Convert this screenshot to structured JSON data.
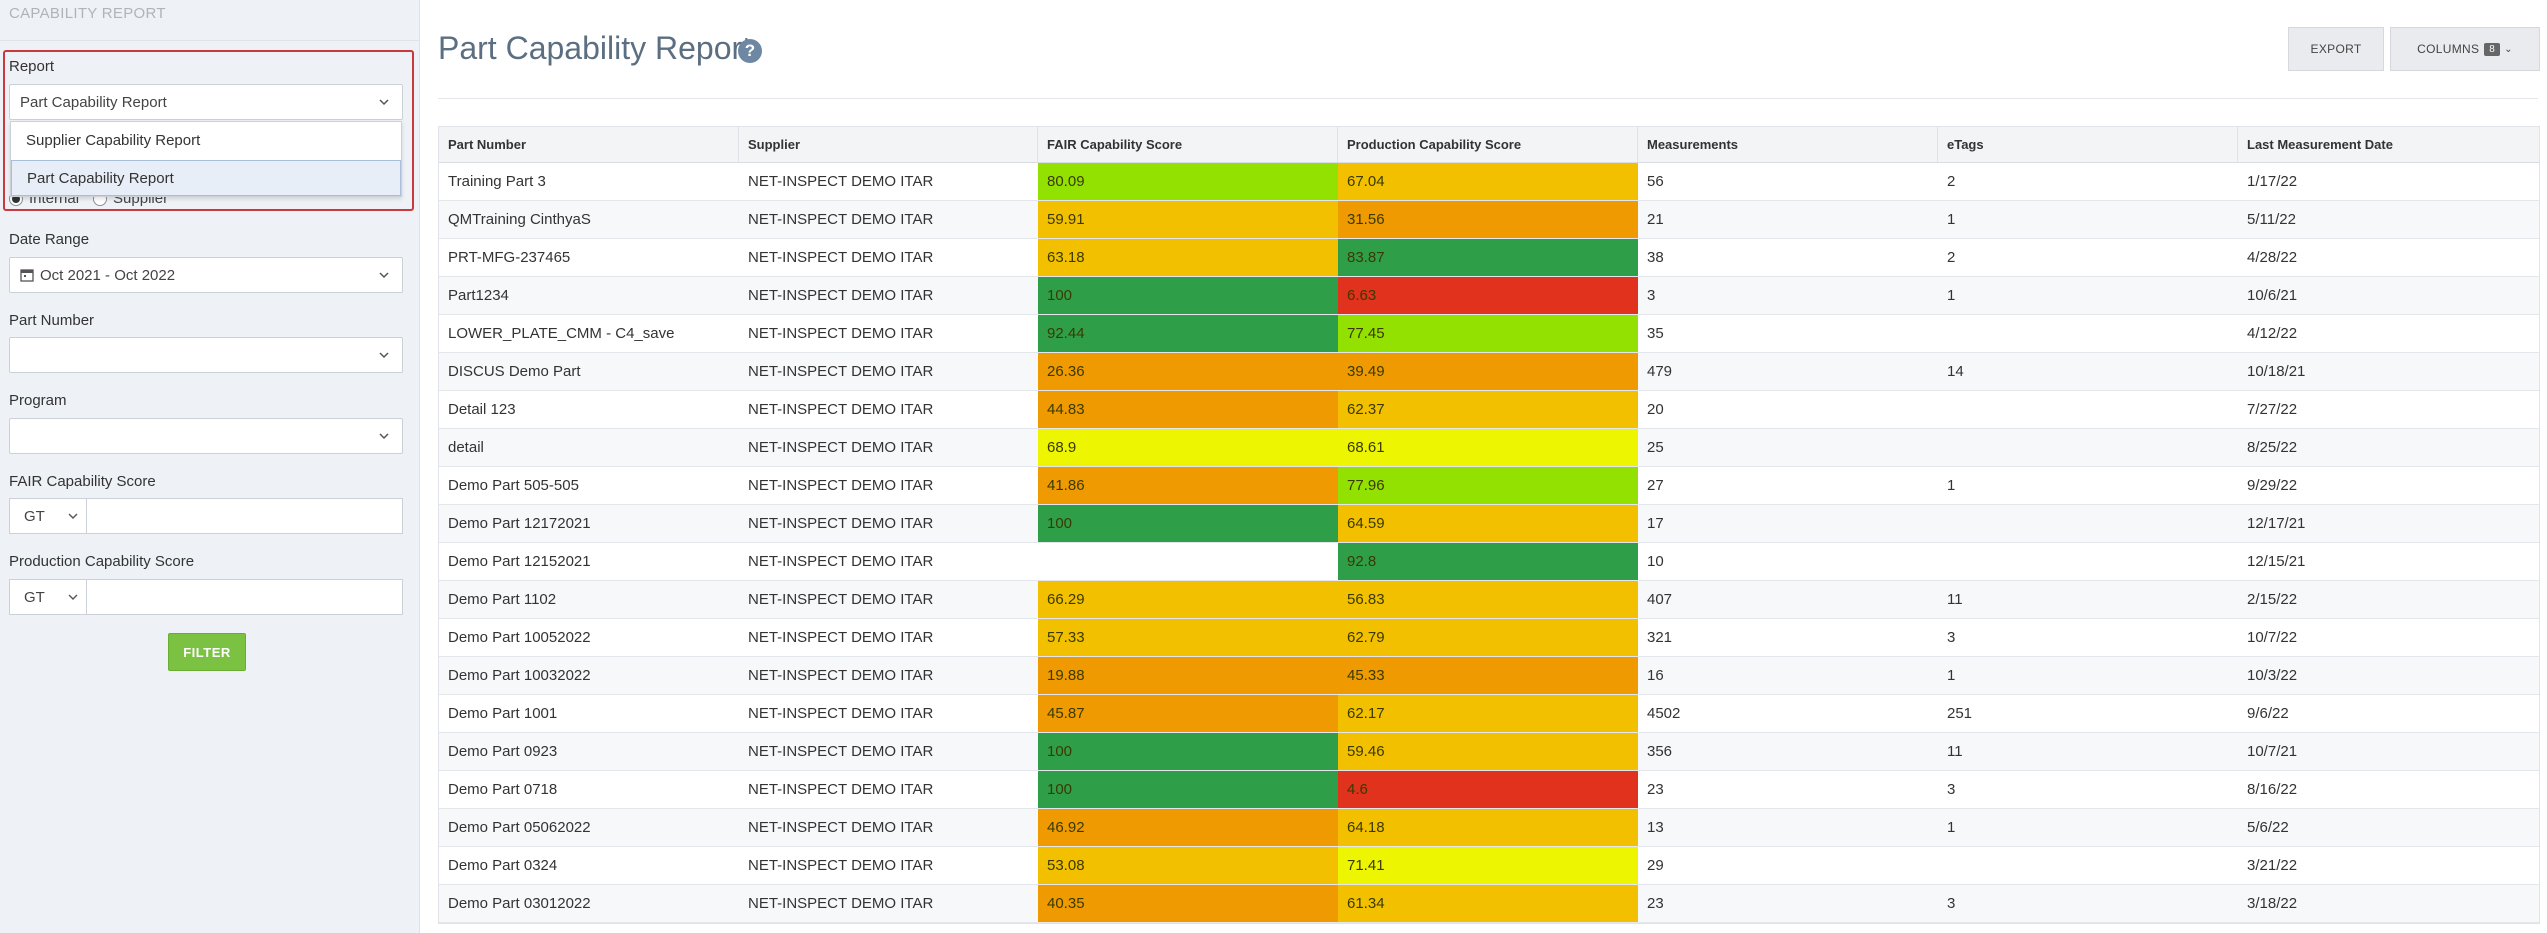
{
  "sidebar": {
    "title": "CAPABILITY REPORT",
    "report_label": "Report",
    "report_value": "Part Capability Report",
    "report_options": [
      "Supplier Capability Report",
      "Part Capability Report"
    ],
    "radio_internal": "Internal",
    "radio_supplier": "Supplier",
    "date_range_label": "Date Range",
    "date_range_value": "Oct 2021 - Oct 2022",
    "part_number_label": "Part Number",
    "program_label": "Program",
    "fair_label": "FAIR Capability Score",
    "fair_operator": "GT",
    "production_label": "Production Capability Score",
    "production_operator": "GT",
    "filter_label": "FILTER"
  },
  "header": {
    "title": "Part Capability Report",
    "help": "?",
    "export_label": "EXPORT",
    "columns_label": "COLUMNS",
    "columns_count": "8"
  },
  "table": {
    "columns": [
      "Part Number",
      "Supplier",
      "FAIR Capability Score",
      "Production Capability Score",
      "Measurements",
      "eTags",
      "Last Measurement Date"
    ],
    "rows": [
      {
        "part": "Training Part 3",
        "supplier": "NET-INSPECT DEMO ITAR",
        "fair": "80.09",
        "fair_color": "#93e100",
        "prod": "67.04",
        "prod_color": "#f3c000",
        "meas": "56",
        "etags": "2",
        "date": "1/17/22"
      },
      {
        "part": "QMTraining CinthyaS",
        "supplier": "NET-INSPECT DEMO ITAR",
        "fair": "59.91",
        "fair_color": "#f3c000",
        "prod": "31.56",
        "prod_color": "#ee9a00",
        "meas": "21",
        "etags": "1",
        "date": "5/11/22"
      },
      {
        "part": "PRT-MFG-237465",
        "supplier": "NET-INSPECT DEMO ITAR",
        "fair": "63.18",
        "fair_color": "#f3c000",
        "prod": "83.87",
        "prod_color": "#2f9e48",
        "meas": "38",
        "etags": "2",
        "date": "4/28/22"
      },
      {
        "part": "Part1234",
        "supplier": "NET-INSPECT DEMO ITAR",
        "fair": "100",
        "fair_color": "#2f9e48",
        "prod": "6.63",
        "prod_color": "#e0321c",
        "meas": "3",
        "etags": "1",
        "date": "10/6/21"
      },
      {
        "part": "LOWER_PLATE_CMM - C4_save",
        "supplier": "NET-INSPECT DEMO ITAR",
        "fair": "92.44",
        "fair_color": "#2f9e48",
        "prod": "77.45",
        "prod_color": "#93e100",
        "meas": "35",
        "etags": "",
        "date": "4/12/22"
      },
      {
        "part": "DISCUS Demo Part",
        "supplier": "NET-INSPECT DEMO ITAR",
        "fair": "26.36",
        "fair_color": "#ee9a00",
        "prod": "39.49",
        "prod_color": "#ee9a00",
        "meas": "479",
        "etags": "14",
        "date": "10/18/21"
      },
      {
        "part": "Detail 123",
        "supplier": "NET-INSPECT DEMO ITAR",
        "fair": "44.83",
        "fair_color": "#ee9a00",
        "prod": "62.37",
        "prod_color": "#f3c000",
        "meas": "20",
        "etags": "",
        "date": "7/27/22"
      },
      {
        "part": "detail",
        "supplier": "NET-INSPECT DEMO ITAR",
        "fair": "68.9",
        "fair_color": "#eef500",
        "prod": "68.61",
        "prod_color": "#eef500",
        "meas": "25",
        "etags": "",
        "date": "8/25/22"
      },
      {
        "part": "Demo Part 505-505",
        "supplier": "NET-INSPECT DEMO ITAR",
        "fair": "41.86",
        "fair_color": "#ee9a00",
        "prod": "77.96",
        "prod_color": "#93e100",
        "meas": "27",
        "etags": "1",
        "date": "9/29/22"
      },
      {
        "part": "Demo Part 12172021",
        "supplier": "NET-INSPECT DEMO ITAR",
        "fair": "100",
        "fair_color": "#2f9e48",
        "prod": "64.59",
        "prod_color": "#f3c000",
        "meas": "17",
        "etags": "",
        "date": "12/17/21"
      },
      {
        "part": "Demo Part 12152021",
        "supplier": "NET-INSPECT DEMO ITAR",
        "fair": "",
        "fair_color": "",
        "prod": "92.8",
        "prod_color": "#2f9e48",
        "meas": "10",
        "etags": "",
        "date": "12/15/21"
      },
      {
        "part": "Demo Part 1102",
        "supplier": "NET-INSPECT DEMO ITAR",
        "fair": "66.29",
        "fair_color": "#f3c000",
        "prod": "56.83",
        "prod_color": "#f3c000",
        "meas": "407",
        "etags": "11",
        "date": "2/15/22"
      },
      {
        "part": "Demo Part 10052022",
        "supplier": "NET-INSPECT DEMO ITAR",
        "fair": "57.33",
        "fair_color": "#f3c000",
        "prod": "62.79",
        "prod_color": "#f3c000",
        "meas": "321",
        "etags": "3",
        "date": "10/7/22"
      },
      {
        "part": "Demo Part 10032022",
        "supplier": "NET-INSPECT DEMO ITAR",
        "fair": "19.88",
        "fair_color": "#ee9a00",
        "prod": "45.33",
        "prod_color": "#ee9a00",
        "meas": "16",
        "etags": "1",
        "date": "10/3/22"
      },
      {
        "part": "Demo Part 1001",
        "supplier": "NET-INSPECT DEMO ITAR",
        "fair": "45.87",
        "fair_color": "#ee9a00",
        "prod": "62.17",
        "prod_color": "#f3c000",
        "meas": "4502",
        "etags": "251",
        "date": "9/6/22"
      },
      {
        "part": "Demo Part 0923",
        "supplier": "NET-INSPECT DEMO ITAR",
        "fair": "100",
        "fair_color": "#2f9e48",
        "prod": "59.46",
        "prod_color": "#f3c000",
        "meas": "356",
        "etags": "11",
        "date": "10/7/21"
      },
      {
        "part": "Demo Part 0718",
        "supplier": "NET-INSPECT DEMO ITAR",
        "fair": "100",
        "fair_color": "#2f9e48",
        "prod": "4.6",
        "prod_color": "#e0321c",
        "meas": "23",
        "etags": "3",
        "date": "8/16/22"
      },
      {
        "part": "Demo Part 05062022",
        "supplier": "NET-INSPECT DEMO ITAR",
        "fair": "46.92",
        "fair_color": "#ee9a00",
        "prod": "64.18",
        "prod_color": "#f3c000",
        "meas": "13",
        "etags": "1",
        "date": "5/6/22"
      },
      {
        "part": "Demo Part 0324",
        "supplier": "NET-INSPECT DEMO ITAR",
        "fair": "53.08",
        "fair_color": "#f3c000",
        "prod": "71.41",
        "prod_color": "#eef500",
        "meas": "29",
        "etags": "",
        "date": "3/21/22"
      },
      {
        "part": "Demo Part 03012022",
        "supplier": "NET-INSPECT DEMO ITAR",
        "fair": "40.35",
        "fair_color": "#ee9a00",
        "prod": "61.34",
        "prod_color": "#f3c000",
        "meas": "23",
        "etags": "3",
        "date": "3/18/22"
      }
    ]
  }
}
